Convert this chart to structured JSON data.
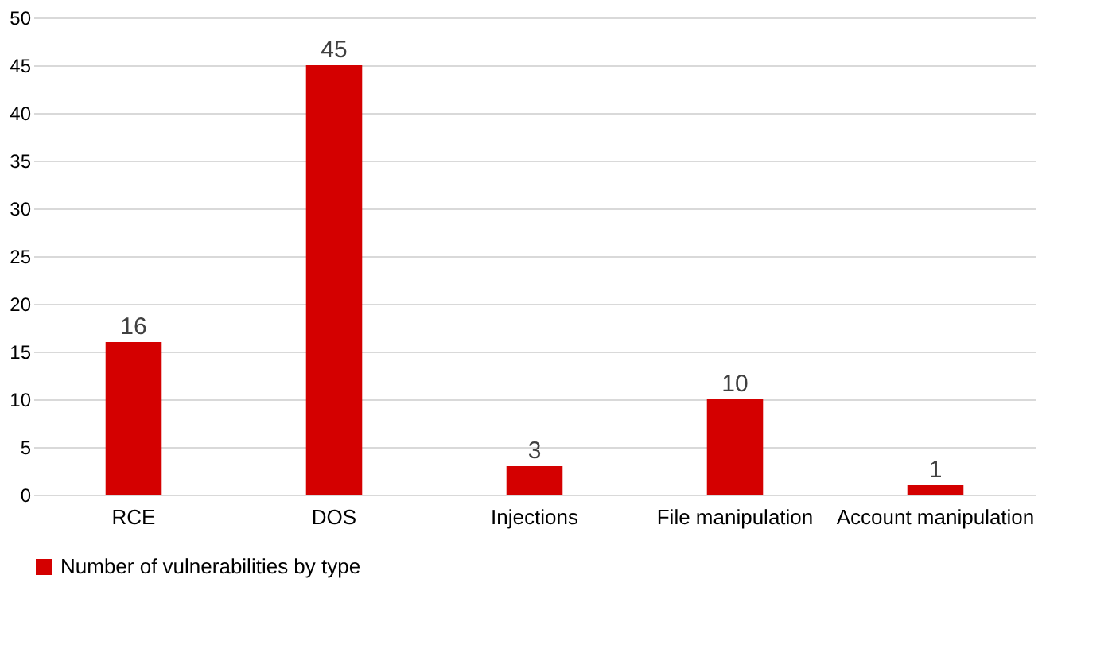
{
  "chart_data": {
    "type": "bar",
    "categories": [
      "RCE",
      "DOS",
      "Injections",
      "File manipulation",
      "Account manipulation"
    ],
    "series": [
      {
        "name": "Number of vulnerabilities by type",
        "color": "#d40000",
        "values": [
          16,
          45,
          3,
          10,
          1
        ]
      }
    ],
    "ylim": [
      0,
      50
    ],
    "yticks": [
      0,
      5,
      10,
      15,
      20,
      25,
      30,
      35,
      40,
      45,
      50
    ],
    "grid": "y",
    "legend": "bottom",
    "data_labels": true
  }
}
